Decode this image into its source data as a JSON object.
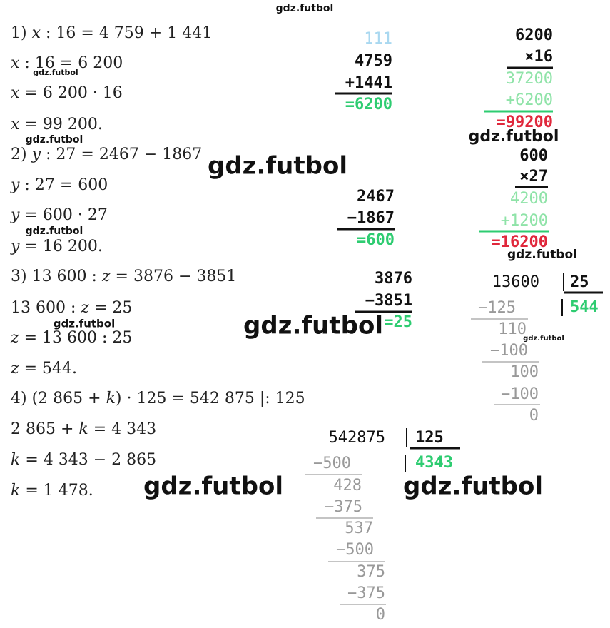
{
  "equations": [
    "1) x : 16 = 4 759 + 1 441",
    "x : 16 = 6 200",
    "x = 6 200 · 16",
    "x = 99 200.",
    "2) y : 27 = 2467 − 1867",
    "y : 27 = 600",
    "y = 600 · 27",
    "y = 16 200.",
    "3) 13 600 : z = 3876 − 3851",
    "13 600 : z = 25",
    "z = 13 600 : 25",
    "z = 544.",
    "4) (2 865 + k) · 125 = 542 875   |: 125",
    "2 865 + k = 4 343",
    "k = 4 343 − 2 865",
    "k = 1 478."
  ],
  "columns": [
    {
      "lines": [
        "111",
        "4759",
        "+1441",
        "=6200"
      ]
    },
    {
      "lines": [
        "6200",
        "×16",
        "37200",
        "+6200",
        "=99200"
      ]
    },
    {
      "lines": [
        "2467",
        "−1867",
        "=600"
      ]
    },
    {
      "lines": [
        "600",
        "×27",
        "4200",
        "+1200",
        "=16200"
      ]
    },
    {
      "lines": [
        "3876",
        "−3851",
        "=25"
      ]
    }
  ],
  "divisions": [
    {
      "dividend": "13600",
      "divisor": "25",
      "quotient": "544",
      "steps": [
        "−125",
        "110",
        "−100",
        "100",
        "−100",
        "0"
      ]
    },
    {
      "dividend": "542875",
      "divisor": "125",
      "quotient": "4343",
      "steps": [
        "−500",
        "428",
        "−375",
        "537",
        "−500",
        "375",
        "−375",
        "0"
      ]
    }
  ],
  "watermarks": [
    "gdz.futbol",
    "gdz.futbol",
    "gdz.futbol",
    "gdz.futbol",
    "gdz.futbol",
    "gdz.futbol",
    "gdz.futbol",
    "gdz.futbol",
    "gdz.futbol",
    "gdz.futbol",
    "gdz.futbol",
    "gdz.futbol"
  ]
}
